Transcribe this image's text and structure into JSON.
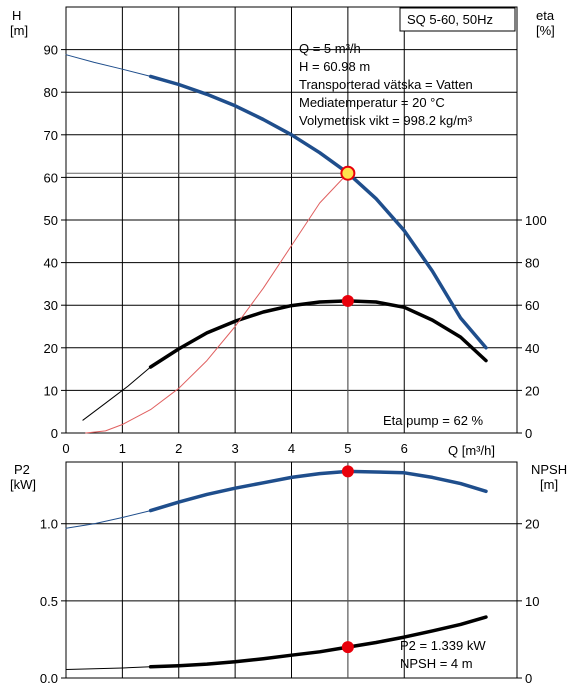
{
  "colors": {
    "blue": "#1f4e8c",
    "red": "#e8000b",
    "black": "#000000",
    "thin_red": "#e06060",
    "yellow": "#ffe24d"
  },
  "chart_data": [
    {
      "type": "line",
      "box_label": "SQ 5-60, 50Hz",
      "ylabel_left": [
        "H",
        "[m]"
      ],
      "ylabel_right": [
        "eta",
        "[%]"
      ],
      "xlabel": "Q [m³/h]",
      "xlim": [
        0,
        8.0
      ],
      "ylim_left": [
        0,
        100
      ],
      "ylim_right": [
        0,
        200
      ],
      "x_ticks": [
        0,
        1,
        2,
        3,
        4,
        5,
        6
      ],
      "y_left_ticks": [
        0,
        10,
        20,
        30,
        40,
        50,
        60,
        70,
        80,
        90
      ],
      "y_right_ticks": [
        0,
        20,
        40,
        60,
        80,
        100
      ],
      "info": [
        "Q = 5 m³/h",
        "H = 60.98 m",
        "Transporterad vätska = Vatten",
        "Mediatemperatur = 20 °C",
        "Volymetrisk vikt = 998.2 kg/m³"
      ],
      "bottom_note": "Eta pump = 62 %",
      "series": [
        {
          "key": "H",
          "axis": "left",
          "role": "thin",
          "points": [
            [
              0.0,
              88.8
            ],
            [
              0.5,
              87.0
            ],
            [
              1.0,
              85.4
            ],
            [
              1.5,
              83.7
            ]
          ]
        },
        {
          "key": "H",
          "axis": "left",
          "role": "main",
          "points": [
            [
              1.5,
              83.7
            ],
            [
              2.0,
              81.8
            ],
            [
              2.5,
              79.5
            ],
            [
              3.0,
              76.8
            ],
            [
              3.5,
              73.6
            ],
            [
              4.0,
              70.0
            ],
            [
              4.5,
              65.8
            ],
            [
              5.0,
              61.0
            ],
            [
              5.5,
              55.0
            ],
            [
              6.0,
              47.5
            ],
            [
              6.5,
              38.0
            ],
            [
              7.0,
              27.0
            ],
            [
              7.45,
              20.0
            ]
          ]
        },
        {
          "key": "eta",
          "axis": "right",
          "role": "thin",
          "points": [
            [
              0.3,
              6.0
            ],
            [
              0.7,
              14.0
            ],
            [
              1.1,
              22.0
            ],
            [
              1.5,
              31.0
            ]
          ]
        },
        {
          "key": "eta",
          "axis": "right",
          "role": "main",
          "points": [
            [
              1.5,
              31.0
            ],
            [
              2.0,
              39.5
            ],
            [
              2.5,
              47.0
            ],
            [
              3.0,
              52.5
            ],
            [
              3.5,
              56.8
            ],
            [
              4.0,
              59.8
            ],
            [
              4.5,
              61.5
            ],
            [
              5.0,
              62.0
            ],
            [
              5.5,
              61.5
            ],
            [
              6.0,
              59.0
            ],
            [
              6.5,
              53.0
            ],
            [
              7.0,
              45.0
            ],
            [
              7.45,
              34.0
            ]
          ]
        },
        {
          "key": "system",
          "axis": "left",
          "role": "red-thin",
          "points": [
            [
              0.35,
              0.0
            ],
            [
              0.7,
              0.5
            ],
            [
              1.0,
              2.0
            ],
            [
              1.5,
              5.5
            ],
            [
              2.0,
              10.5
            ],
            [
              2.5,
              17.0
            ],
            [
              3.0,
              25.0
            ],
            [
              3.5,
              34.0
            ],
            [
              4.0,
              44.0
            ],
            [
              4.5,
              54.0
            ],
            [
              5.0,
              61.0
            ]
          ]
        }
      ],
      "operating_points": [
        {
          "key": "H",
          "x": 5.0,
          "y": 60.98,
          "axis": "left",
          "style": "yellow"
        },
        {
          "key": "eta",
          "x": 5.0,
          "y": 62.0,
          "axis": "right",
          "style": "red"
        }
      ]
    },
    {
      "type": "line",
      "ylabel_left": [
        "P2",
        "[kW]"
      ],
      "ylabel_right": [
        "NPSH",
        "[m]"
      ],
      "xlim": [
        0,
        8.0
      ],
      "ylim_left": [
        0,
        1.4
      ],
      "ylim_right": [
        0,
        28
      ],
      "y_left_ticks": [
        0.0,
        0.5,
        1.0
      ],
      "y_right_ticks": [
        0,
        10,
        20
      ],
      "y_left_tick_labels": [
        "0.0",
        "0.5",
        "1.0"
      ],
      "y_right_tick_labels": [
        "0",
        "10",
        "20"
      ],
      "info": [
        "P2 = 1.339 kW",
        "NPSH = 4 m"
      ],
      "series": [
        {
          "key": "P2",
          "axis": "left",
          "role": "thin",
          "points": [
            [
              0.0,
              0.97
            ],
            [
              0.5,
              1.0
            ],
            [
              1.0,
              1.04
            ],
            [
              1.5,
              1.085
            ]
          ]
        },
        {
          "key": "P2",
          "axis": "left",
          "role": "main",
          "points": [
            [
              1.5,
              1.085
            ],
            [
              2.0,
              1.14
            ],
            [
              2.5,
              1.19
            ],
            [
              3.0,
              1.23
            ],
            [
              3.5,
              1.265
            ],
            [
              4.0,
              1.3
            ],
            [
              4.5,
              1.325
            ],
            [
              5.0,
              1.339
            ],
            [
              5.5,
              1.335
            ],
            [
              6.0,
              1.33
            ],
            [
              6.5,
              1.3
            ],
            [
              7.0,
              1.26
            ],
            [
              7.45,
              1.21
            ]
          ]
        },
        {
          "key": "NPSH",
          "axis": "right",
          "role": "thin",
          "points": [
            [
              0.0,
              1.1
            ],
            [
              0.5,
              1.2
            ],
            [
              1.0,
              1.3
            ],
            [
              1.5,
              1.45
            ]
          ]
        },
        {
          "key": "NPSH",
          "axis": "right",
          "role": "main",
          "points": [
            [
              1.5,
              1.45
            ],
            [
              2.0,
              1.6
            ],
            [
              2.5,
              1.8
            ],
            [
              3.0,
              2.1
            ],
            [
              3.5,
              2.5
            ],
            [
              4.0,
              2.95
            ],
            [
              4.5,
              3.4
            ],
            [
              5.0,
              4.0
            ],
            [
              5.5,
              4.6
            ],
            [
              6.0,
              5.3
            ],
            [
              6.5,
              6.1
            ],
            [
              7.0,
              6.95
            ],
            [
              7.45,
              7.9
            ]
          ]
        }
      ],
      "operating_points": [
        {
          "key": "P2",
          "x": 5.0,
          "y": 1.339,
          "axis": "left",
          "style": "red"
        },
        {
          "key": "NPSH",
          "x": 5.0,
          "y": 4.0,
          "axis": "right",
          "style": "red"
        }
      ]
    }
  ]
}
